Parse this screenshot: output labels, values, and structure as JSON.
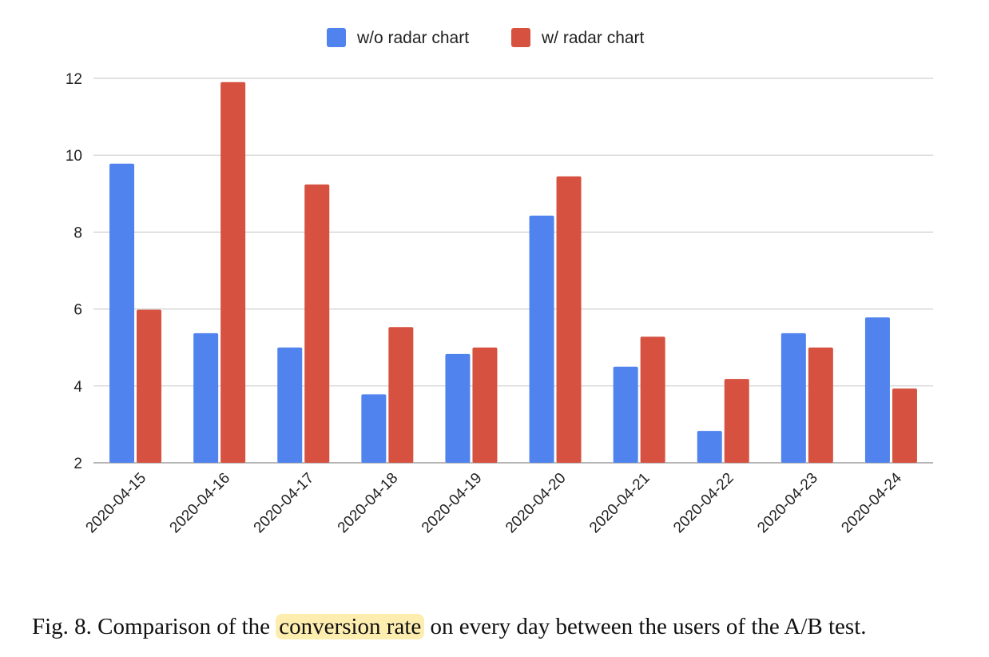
{
  "chart_data": {
    "type": "bar",
    "categories": [
      "2020-04-15",
      "2020-04-16",
      "2020-04-17",
      "2020-04-18",
      "2020-04-19",
      "2020-04-20",
      "2020-04-21",
      "2020-04-22",
      "2020-04-23",
      "2020-04-24"
    ],
    "series": [
      {
        "name": "w/o radar chart",
        "color": "#5083ee",
        "values": [
          9.78,
          5.37,
          5.0,
          3.78,
          4.83,
          8.43,
          4.5,
          2.83,
          5.37,
          5.78
        ]
      },
      {
        "name": "w/ radar chart",
        "color": "#d65140",
        "values": [
          5.98,
          11.9,
          9.24,
          5.53,
          5.0,
          9.45,
          5.28,
          4.18,
          5.0,
          3.93
        ]
      }
    ],
    "ylim": [
      2,
      12
    ],
    "yticks": [
      2,
      4,
      6,
      8,
      10,
      12
    ],
    "grid": true,
    "legend": "top-center",
    "title": "",
    "xlabel": "",
    "ylabel": ""
  },
  "caption": {
    "prefix": "Fig. 8.  Comparison of the ",
    "highlight": "conversion rate",
    "suffix": " on every day between the users of the A/B test."
  }
}
